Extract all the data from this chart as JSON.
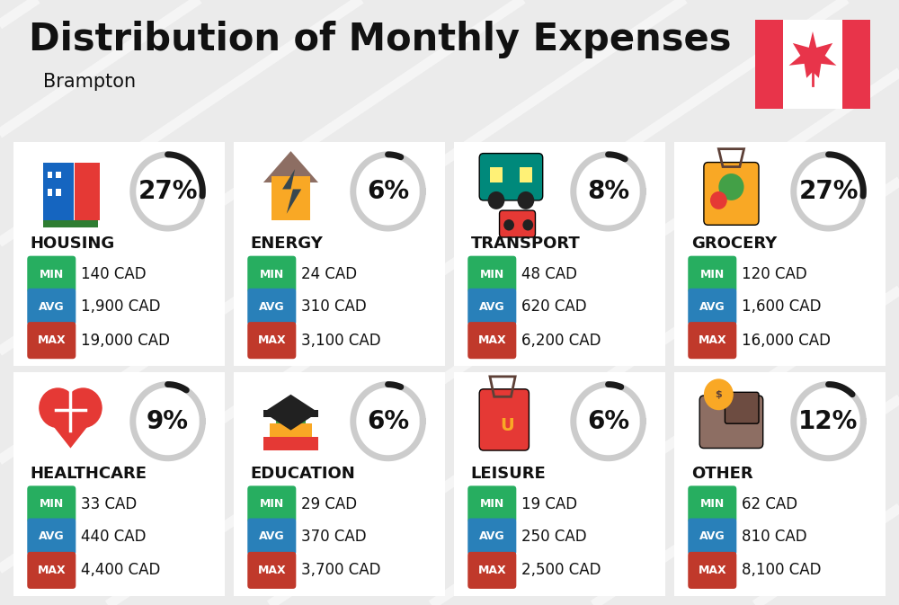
{
  "title": "Distribution of Monthly Expenses",
  "subtitle": "Brampton",
  "background_color": "#ebebeb",
  "card_color": "#ffffff",
  "categories": [
    {
      "name": "HOUSING",
      "pct": 27,
      "min": "140 CAD",
      "avg": "1,900 CAD",
      "max": "19,000 CAD",
      "row": 0,
      "col": 0
    },
    {
      "name": "ENERGY",
      "pct": 6,
      "min": "24 CAD",
      "avg": "310 CAD",
      "max": "3,100 CAD",
      "row": 0,
      "col": 1
    },
    {
      "name": "TRANSPORT",
      "pct": 8,
      "min": "48 CAD",
      "avg": "620 CAD",
      "max": "6,200 CAD",
      "row": 0,
      "col": 2
    },
    {
      "name": "GROCERY",
      "pct": 27,
      "min": "120 CAD",
      "avg": "1,600 CAD",
      "max": "16,000 CAD",
      "row": 0,
      "col": 3
    },
    {
      "name": "HEALTHCARE",
      "pct": 9,
      "min": "33 CAD",
      "avg": "440 CAD",
      "max": "4,400 CAD",
      "row": 1,
      "col": 0
    },
    {
      "name": "EDUCATION",
      "pct": 6,
      "min": "29 CAD",
      "avg": "370 CAD",
      "max": "3,700 CAD",
      "row": 1,
      "col": 1
    },
    {
      "name": "LEISURE",
      "pct": 6,
      "min": "19 CAD",
      "avg": "250 CAD",
      "max": "2,500 CAD",
      "row": 1,
      "col": 2
    },
    {
      "name": "OTHER",
      "pct": 12,
      "min": "62 CAD",
      "avg": "810 CAD",
      "max": "8,100 CAD",
      "row": 1,
      "col": 3
    }
  ],
  "min_color": "#27ae60",
  "avg_color": "#2980b9",
  "max_color": "#c0392b",
  "text_color": "#111111",
  "arc_dark": "#1a1a1a",
  "arc_light": "#cccccc",
  "stripe_color": "#ffffff",
  "flag_red": "#e8344a",
  "title_fontsize": 30,
  "subtitle_fontsize": 15,
  "cat_fontsize": 13,
  "pct_fontsize": 20,
  "val_fontsize": 12,
  "badge_fontsize": 9
}
